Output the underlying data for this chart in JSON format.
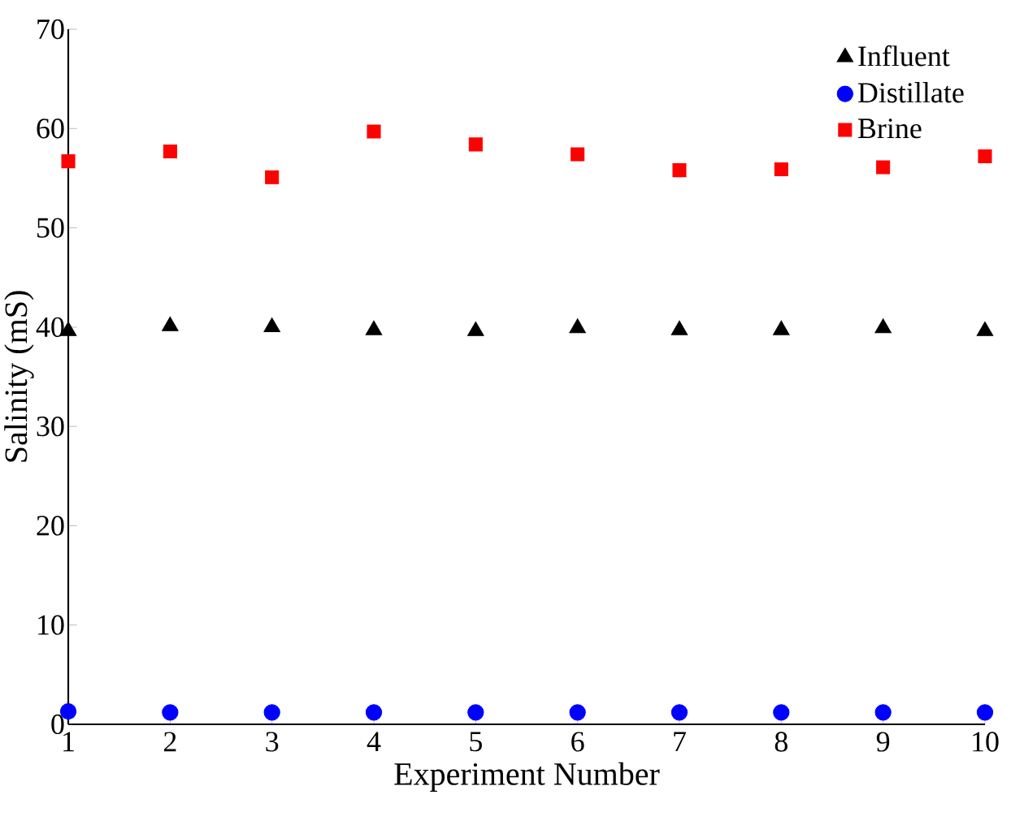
{
  "chart_data": {
    "type": "scatter",
    "xlabel": "Experiment Number",
    "ylabel": "Salinity (mS)",
    "x": [
      1,
      2,
      3,
      4,
      5,
      6,
      7,
      8,
      9,
      10
    ],
    "xlim": [
      1,
      10
    ],
    "ylim": [
      0,
      70
    ],
    "xticks": [
      1,
      2,
      3,
      4,
      5,
      6,
      7,
      8,
      9,
      10
    ],
    "yticks": [
      0,
      10,
      20,
      30,
      40,
      50,
      60,
      70
    ],
    "legend": "top right",
    "series": [
      {
        "name": "Influent",
        "color": "#000000",
        "marker": "triangle",
        "values": [
          39.6,
          40.1,
          40.0,
          39.7,
          39.6,
          39.9,
          39.7,
          39.7,
          39.9,
          39.6
        ]
      },
      {
        "name": "Distillate",
        "color": "#0000ff",
        "marker": "circle",
        "values": [
          1.3,
          1.2,
          1.2,
          1.2,
          1.2,
          1.2,
          1.2,
          1.2,
          1.2,
          1.2
        ]
      },
      {
        "name": "Brine",
        "color": "#ff0000",
        "marker": "square",
        "values": [
          56.7,
          57.7,
          55.1,
          59.7,
          58.4,
          57.4,
          55.8,
          55.9,
          56.1,
          57.2
        ]
      }
    ]
  }
}
